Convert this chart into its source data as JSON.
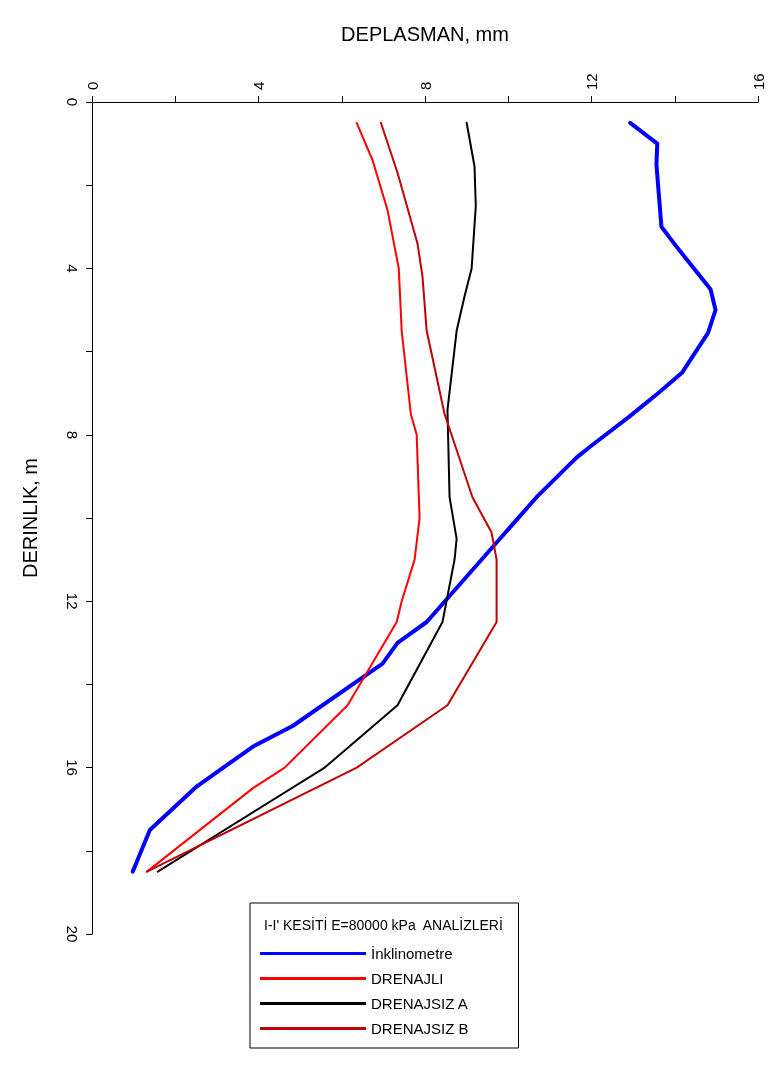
{
  "chart_data": {
    "type": "line",
    "xlabel": "DEPLASMAN, mm",
    "ylabel": "DERINLIK, m",
    "legend_title": "I-I' KESİTİ E=80000 kPa  ANALİZLERİ",
    "xlim": [
      0,
      16
    ],
    "xticks": [
      0,
      {
        "value": 2,
        "label": null
      },
      4,
      {
        "value": 6,
        "label": null
      },
      8,
      {
        "value": 10,
        "label": null
      },
      12,
      {
        "value": 14,
        "label": null
      },
      16
    ],
    "ylim": [
      20,
      0
    ],
    "yticks": [
      0,
      {
        "value": 2,
        "label": null
      },
      4,
      {
        "value": 6,
        "label": null
      },
      8,
      {
        "value": 10,
        "label": null
      },
      12,
      {
        "value": 14,
        "label": null
      },
      16,
      {
        "value": 18,
        "label": null
      },
      20
    ],
    "grid": false,
    "legend": "bottom",
    "marker": "none",
    "line_style": "solid",
    "series": [
      {
        "name": "İnklinometre",
        "color": "#0000ff",
        "x": [
          12.93,
          13.58,
          13.56,
          13.6,
          13.68,
          14.06,
          14.86,
          14.98,
          14.8,
          14.18,
          13.6,
          12.9,
          11.95,
          11.64,
          10.68,
          9.8,
          8.04,
          7.34,
          6.98,
          4.82,
          3.86,
          2.52,
          1.39,
          0.98
        ],
        "values": [
          0.5,
          1.0,
          1.5,
          2.0,
          3.0,
          3.5,
          4.5,
          5.0,
          5.55,
          6.5,
          7.0,
          7.57,
          8.3,
          8.55,
          9.5,
          10.5,
          12.5,
          13.0,
          13.5,
          15.0,
          15.5,
          16.45,
          17.5,
          18.5
        ]
      },
      {
        "name": "DRENAJLI",
        "color": "#ff0000",
        "x": [
          6.36,
          6.74,
          7.1,
          7.37,
          7.44,
          7.66,
          7.8,
          7.87,
          7.75,
          7.44,
          7.32,
          6.14,
          4.63,
          3.86,
          1.32
        ],
        "values": [
          0.5,
          1.4,
          2.6,
          4.0,
          5.5,
          7.5,
          8.0,
          10.0,
          11.0,
          12.0,
          12.5,
          14.5,
          16.0,
          16.5,
          18.5
        ]
      },
      {
        "name": "DRENAJSIZ A",
        "color": "#000000",
        "x": [
          9.0,
          9.19,
          9.22,
          9.12,
          8.95,
          8.76,
          8.54,
          8.59,
          8.76,
          8.71,
          8.42,
          7.34,
          5.59,
          1.58
        ],
        "values": [
          0.5,
          1.55,
          2.5,
          4.0,
          4.67,
          5.5,
          7.4,
          9.5,
          10.5,
          11.0,
          12.5,
          14.5,
          16.0,
          18.5
        ]
      },
      {
        "name": "DRENAJSIZ B",
        "color": "#c00000",
        "x": [
          6.94,
          7.34,
          7.82,
          7.94,
          8.04,
          8.47,
          9.14,
          9.6,
          9.72,
          9.72,
          8.54,
          6.36,
          1.32
        ],
        "values": [
          0.5,
          1.7,
          3.4,
          4.2,
          5.5,
          7.5,
          9.5,
          10.35,
          11.0,
          12.5,
          14.5,
          16.0,
          18.5
        ]
      }
    ]
  }
}
